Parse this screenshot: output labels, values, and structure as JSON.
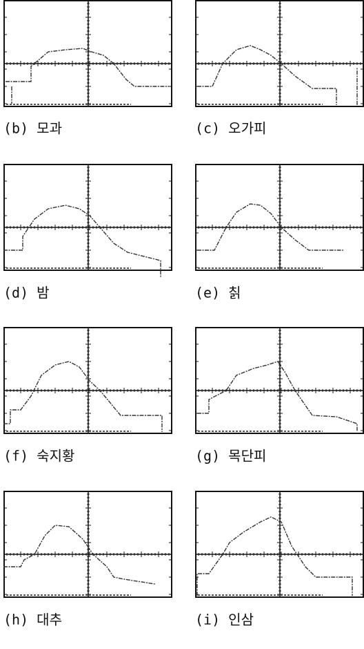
{
  "panels": [
    {
      "caption": "(b) 모과"
    },
    {
      "caption": "(c) 오가피"
    },
    {
      "caption": "(d) 밤"
    },
    {
      "caption": "(e) 칡"
    },
    {
      "caption": "(f) 숙지황"
    },
    {
      "caption": "(g) 목단피"
    },
    {
      "caption": "(h) 대추"
    },
    {
      "caption": "(i) 인삼"
    }
  ]
}
